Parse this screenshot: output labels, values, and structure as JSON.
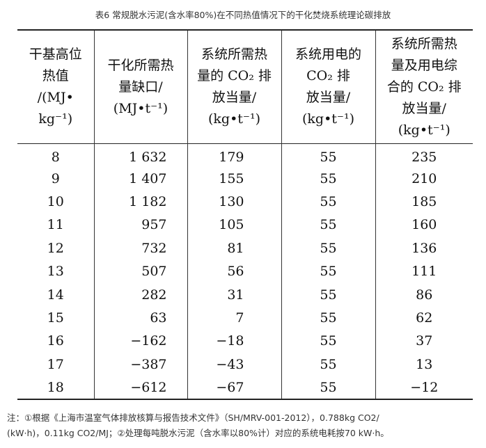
{
  "caption": "表6 常规脱水污泥(含水率80%)在不同热值情况下的干化焚烧系统理论碳排放",
  "table": {
    "headers": [
      [
        "干基高位",
        "热值",
        "/(MJ•",
        "kg⁻¹)"
      ],
      [
        "干化所需热",
        "量缺口/",
        "(MJ•t⁻¹)"
      ],
      [
        "系统所需热",
        "量的 CO₂ 排",
        "放当量/",
        "(kg•t⁻¹)"
      ],
      [
        "系统用电的",
        "CO₂ 排",
        "放当量/",
        "(kg•t⁻¹)"
      ],
      [
        "系统所需热",
        "量及用电综",
        "合的 CO₂ 排",
        "放当量/",
        "(kg•t⁻¹)"
      ]
    ],
    "rows": [
      [
        "8",
        "1 632",
        "179",
        "55",
        "235"
      ],
      [
        "9",
        "1 407",
        "155",
        "55",
        "210"
      ],
      [
        "10",
        "1 182",
        "130",
        "55",
        "185"
      ],
      [
        "11",
        "957",
        "105",
        "55",
        "160"
      ],
      [
        "12",
        "732",
        "81",
        "55",
        "136"
      ],
      [
        "13",
        "507",
        "56",
        "55",
        "111"
      ],
      [
        "14",
        "282",
        "31",
        "55",
        "86"
      ],
      [
        "15",
        "63",
        "7",
        "55",
        "62"
      ],
      [
        "16",
        "−162",
        "−18",
        "55",
        "37"
      ],
      [
        "17",
        "−387",
        "−43",
        "55",
        "13"
      ],
      [
        "18",
        "−612",
        "−67",
        "55",
        "−12"
      ]
    ]
  },
  "note": {
    "line1": "注：①根据《上海市温室气体排放核算与报告技术文件》（SH/MRV-001-2012），0.788kg CO2/",
    "line2": "(kW·h)，0.11kg CO2/MJ；②处理每吨脱水污泥（含水率以80%计）对应的系统电耗按70 kW·h。"
  }
}
